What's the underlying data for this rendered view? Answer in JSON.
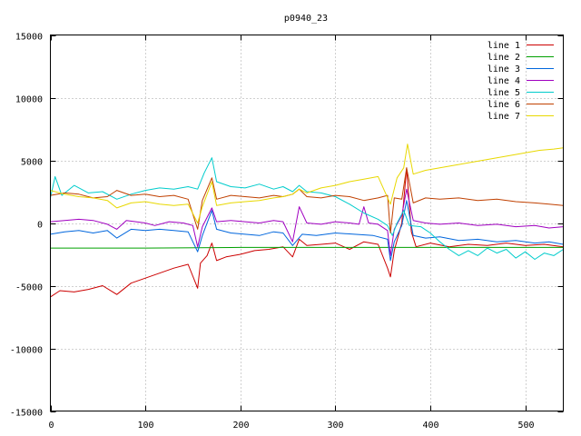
{
  "chart_data": {
    "type": "line",
    "title": "p0940_23",
    "xlabel": "",
    "ylabel": "",
    "xlim": [
      0,
      540
    ],
    "ylim": [
      -15000,
      15000
    ],
    "xticks": [
      0,
      100,
      200,
      300,
      400,
      500
    ],
    "xtick_labels": [
      "0",
      "100",
      "200",
      "300",
      "400",
      "500"
    ],
    "yticks": [
      -15000,
      -10000,
      -5000,
      0,
      5000,
      10000,
      15000
    ],
    "ytick_labels": [
      "-15000",
      "-10000",
      "-5000",
      "0",
      "5000",
      "10000",
      "15000"
    ],
    "grid": true,
    "legend_position": "top-right",
    "series": [
      {
        "name": "line 1",
        "color": "#cc0000",
        "points": [
          [
            0,
            -5900
          ],
          [
            10,
            -5400
          ],
          [
            25,
            -5500
          ],
          [
            40,
            -5300
          ],
          [
            55,
            -5000
          ],
          [
            70,
            -5700
          ],
          [
            85,
            -4800
          ],
          [
            100,
            -4400
          ],
          [
            115,
            -4000
          ],
          [
            130,
            -3600
          ],
          [
            145,
            -3300
          ],
          [
            155,
            -5200
          ],
          [
            158,
            -3200
          ],
          [
            165,
            -2600
          ],
          [
            170,
            -1600
          ],
          [
            175,
            -3000
          ],
          [
            185,
            -2700
          ],
          [
            200,
            -2500
          ],
          [
            215,
            -2200
          ],
          [
            230,
            -2100
          ],
          [
            245,
            -1900
          ],
          [
            255,
            -2700
          ],
          [
            262,
            -1300
          ],
          [
            270,
            -1800
          ],
          [
            285,
            -1700
          ],
          [
            300,
            -1600
          ],
          [
            315,
            -2100
          ],
          [
            330,
            -1500
          ],
          [
            345,
            -1700
          ],
          [
            355,
            -3600
          ],
          [
            358,
            -4300
          ],
          [
            362,
            -2200
          ],
          [
            370,
            0
          ],
          [
            375,
            4400
          ],
          [
            380,
            -700
          ],
          [
            385,
            -1900
          ],
          [
            400,
            -1600
          ],
          [
            420,
            -1900
          ],
          [
            440,
            -1700
          ],
          [
            460,
            -1800
          ],
          [
            480,
            -1600
          ],
          [
            500,
            -1800
          ],
          [
            520,
            -1700
          ],
          [
            540,
            -1900
          ]
        ]
      },
      {
        "name": "line 2",
        "color": "#00a000",
        "points": [
          [
            0,
            -2000
          ],
          [
            100,
            -2000
          ],
          [
            200,
            -1950
          ],
          [
            300,
            -1950
          ],
          [
            400,
            -1950
          ],
          [
            540,
            -1950
          ]
        ]
      },
      {
        "name": "line 3",
        "color": "#0066dd",
        "points": [
          [
            0,
            -900
          ],
          [
            15,
            -700
          ],
          [
            30,
            -600
          ],
          [
            45,
            -800
          ],
          [
            60,
            -600
          ],
          [
            70,
            -1200
          ],
          [
            85,
            -500
          ],
          [
            100,
            -600
          ],
          [
            115,
            -500
          ],
          [
            130,
            -600
          ],
          [
            145,
            -700
          ],
          [
            155,
            -2300
          ],
          [
            160,
            -1000
          ],
          [
            170,
            1000
          ],
          [
            175,
            -500
          ],
          [
            190,
            -800
          ],
          [
            205,
            -900
          ],
          [
            220,
            -1000
          ],
          [
            235,
            -700
          ],
          [
            245,
            -800
          ],
          [
            255,
            -1800
          ],
          [
            265,
            -900
          ],
          [
            280,
            -1000
          ],
          [
            300,
            -800
          ],
          [
            320,
            -900
          ],
          [
            340,
            -1000
          ],
          [
            355,
            -1300
          ],
          [
            358,
            -3000
          ],
          [
            362,
            -1500
          ],
          [
            370,
            -200
          ],
          [
            375,
            1800
          ],
          [
            382,
            -1000
          ],
          [
            395,
            -1200
          ],
          [
            410,
            -1100
          ],
          [
            430,
            -1400
          ],
          [
            450,
            -1300
          ],
          [
            470,
            -1500
          ],
          [
            490,
            -1400
          ],
          [
            510,
            -1600
          ],
          [
            525,
            -1500
          ],
          [
            540,
            -1700
          ]
        ]
      },
      {
        "name": "line 4",
        "color": "#a000c0",
        "points": [
          [
            0,
            100
          ],
          [
            15,
            200
          ],
          [
            30,
            300
          ],
          [
            45,
            200
          ],
          [
            60,
            -100
          ],
          [
            70,
            -500
          ],
          [
            80,
            200
          ],
          [
            90,
            100
          ],
          [
            100,
            0
          ],
          [
            110,
            -200
          ],
          [
            125,
            100
          ],
          [
            140,
            0
          ],
          [
            150,
            -200
          ],
          [
            155,
            -1900
          ],
          [
            160,
            -300
          ],
          [
            170,
            1200
          ],
          [
            175,
            100
          ],
          [
            190,
            200
          ],
          [
            205,
            100
          ],
          [
            220,
            0
          ],
          [
            235,
            200
          ],
          [
            245,
            100
          ],
          [
            255,
            -1500
          ],
          [
            262,
            1300
          ],
          [
            270,
            0
          ],
          [
            285,
            -100
          ],
          [
            300,
            100
          ],
          [
            315,
            0
          ],
          [
            325,
            -100
          ],
          [
            330,
            1300
          ],
          [
            335,
            0
          ],
          [
            345,
            -100
          ],
          [
            355,
            -600
          ],
          [
            358,
            -2600
          ],
          [
            362,
            -500
          ],
          [
            370,
            600
          ],
          [
            375,
            2700
          ],
          [
            382,
            200
          ],
          [
            395,
            0
          ],
          [
            410,
            -100
          ],
          [
            430,
            0
          ],
          [
            450,
            -200
          ],
          [
            470,
            -100
          ],
          [
            490,
            -300
          ],
          [
            510,
            -200
          ],
          [
            525,
            -400
          ],
          [
            540,
            -300
          ]
        ]
      },
      {
        "name": "line 5",
        "color": "#00cccc",
        "points": [
          [
            0,
            2000
          ],
          [
            5,
            3700
          ],
          [
            12,
            2200
          ],
          [
            25,
            3000
          ],
          [
            40,
            2400
          ],
          [
            55,
            2500
          ],
          [
            70,
            1900
          ],
          [
            85,
            2300
          ],
          [
            100,
            2600
          ],
          [
            115,
            2800
          ],
          [
            130,
            2700
          ],
          [
            145,
            2900
          ],
          [
            155,
            2700
          ],
          [
            162,
            4000
          ],
          [
            170,
            5200
          ],
          [
            175,
            3300
          ],
          [
            190,
            2900
          ],
          [
            205,
            2800
          ],
          [
            220,
            3100
          ],
          [
            235,
            2700
          ],
          [
            245,
            2900
          ],
          [
            255,
            2500
          ],
          [
            262,
            3000
          ],
          [
            270,
            2500
          ],
          [
            285,
            2400
          ],
          [
            300,
            2100
          ],
          [
            315,
            1500
          ],
          [
            330,
            800
          ],
          [
            345,
            300
          ],
          [
            355,
            -200
          ],
          [
            360,
            -1000
          ],
          [
            365,
            0
          ],
          [
            372,
            1000
          ],
          [
            378,
            -200
          ],
          [
            390,
            -300
          ],
          [
            400,
            -800
          ],
          [
            410,
            -1500
          ],
          [
            420,
            -2100
          ],
          [
            430,
            -2600
          ],
          [
            440,
            -2200
          ],
          [
            450,
            -2600
          ],
          [
            460,
            -2000
          ],
          [
            470,
            -2400
          ],
          [
            480,
            -2100
          ],
          [
            490,
            -2800
          ],
          [
            500,
            -2300
          ],
          [
            510,
            -2900
          ],
          [
            520,
            -2400
          ],
          [
            530,
            -2600
          ],
          [
            540,
            -2100
          ]
        ]
      },
      {
        "name": "line 6",
        "color": "#c04000",
        "points": [
          [
            0,
            2200
          ],
          [
            15,
            2400
          ],
          [
            30,
            2300
          ],
          [
            45,
            2000
          ],
          [
            60,
            2100
          ],
          [
            70,
            2600
          ],
          [
            85,
            2200
          ],
          [
            100,
            2300
          ],
          [
            115,
            2100
          ],
          [
            130,
            2200
          ],
          [
            145,
            1900
          ],
          [
            155,
            -500
          ],
          [
            160,
            1800
          ],
          [
            170,
            3600
          ],
          [
            175,
            1900
          ],
          [
            190,
            2200
          ],
          [
            205,
            2100
          ],
          [
            220,
            2000
          ],
          [
            235,
            2200
          ],
          [
            245,
            2100
          ],
          [
            255,
            2300
          ],
          [
            262,
            2700
          ],
          [
            270,
            2100
          ],
          [
            285,
            2000
          ],
          [
            300,
            2200
          ],
          [
            315,
            2100
          ],
          [
            330,
            1800
          ],
          [
            345,
            2000
          ],
          [
            355,
            2200
          ],
          [
            358,
            -800
          ],
          [
            362,
            2000
          ],
          [
            370,
            1900
          ],
          [
            375,
            4400
          ],
          [
            382,
            1600
          ],
          [
            395,
            2000
          ],
          [
            410,
            1900
          ],
          [
            430,
            2000
          ],
          [
            450,
            1800
          ],
          [
            470,
            1900
          ],
          [
            490,
            1700
          ],
          [
            510,
            1600
          ],
          [
            525,
            1500
          ],
          [
            540,
            1400
          ]
        ]
      },
      {
        "name": "line 7",
        "color": "#e8d800",
        "points": [
          [
            0,
            2600
          ],
          [
            15,
            2300
          ],
          [
            30,
            2100
          ],
          [
            45,
            2000
          ],
          [
            60,
            1800
          ],
          [
            70,
            1200
          ],
          [
            85,
            1600
          ],
          [
            100,
            1700
          ],
          [
            115,
            1500
          ],
          [
            130,
            1400
          ],
          [
            145,
            1500
          ],
          [
            155,
            0
          ],
          [
            160,
            1300
          ],
          [
            170,
            3300
          ],
          [
            175,
            1400
          ],
          [
            190,
            1600
          ],
          [
            205,
            1700
          ],
          [
            220,
            1800
          ],
          [
            235,
            2000
          ],
          [
            245,
            2100
          ],
          [
            255,
            2300
          ],
          [
            262,
            2700
          ],
          [
            270,
            2400
          ],
          [
            285,
            2800
          ],
          [
            300,
            3000
          ],
          [
            315,
            3300
          ],
          [
            330,
            3500
          ],
          [
            345,
            3700
          ],
          [
            358,
            1500
          ],
          [
            365,
            3600
          ],
          [
            372,
            4400
          ],
          [
            376,
            6300
          ],
          [
            382,
            3900
          ],
          [
            395,
            4200
          ],
          [
            410,
            4400
          ],
          [
            425,
            4600
          ],
          [
            440,
            4800
          ],
          [
            455,
            5000
          ],
          [
            470,
            5200
          ],
          [
            485,
            5400
          ],
          [
            500,
            5600
          ],
          [
            515,
            5800
          ],
          [
            530,
            5900
          ],
          [
            540,
            6000
          ]
        ]
      }
    ]
  }
}
